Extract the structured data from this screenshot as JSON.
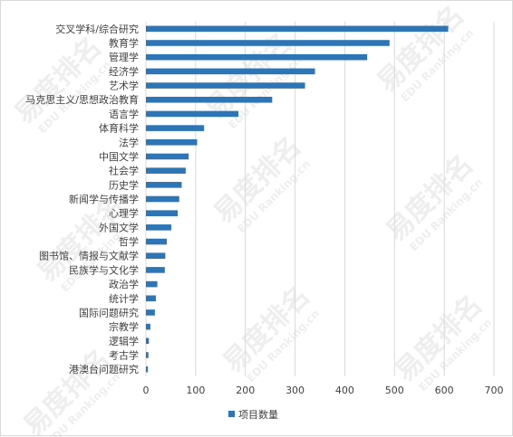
{
  "watermark": {
    "text": "易度排名",
    "subtext": "EDU Ranking.cn"
  },
  "colors": {
    "bar": "#2e75b6",
    "grid": "#d9d9d9",
    "text": "#404040"
  },
  "chart_data": {
    "type": "bar",
    "orientation": "horizontal",
    "categories": [
      "交叉学科/综合研究",
      "教育学",
      "管理学",
      "经济学",
      "艺术学",
      "马克思主义/思想政治教育",
      "语言学",
      "体育科学",
      "法学",
      "中国文学",
      "社会学",
      "历史学",
      "新闻学与传播学",
      "心理学",
      "外国文学",
      "哲学",
      "图书馆、情报与文献学",
      "民族学与文化学",
      "政治学",
      "统计学",
      "国际问题研究",
      "宗教学",
      "逻辑学",
      "考古学",
      "港澳台问题研究"
    ],
    "series": [
      {
        "name": "项目数量",
        "values": [
          608,
          490,
          445,
          340,
          320,
          254,
          186,
          117,
          103,
          86,
          80,
          72,
          67,
          64,
          51,
          42,
          39,
          38,
          23,
          20,
          18,
          9,
          6,
          5,
          4
        ]
      }
    ],
    "xlim": [
      0,
      700
    ],
    "xticks": [
      0,
      100,
      200,
      300,
      400,
      500,
      600,
      700
    ],
    "grid": true,
    "legend": "bottom"
  }
}
